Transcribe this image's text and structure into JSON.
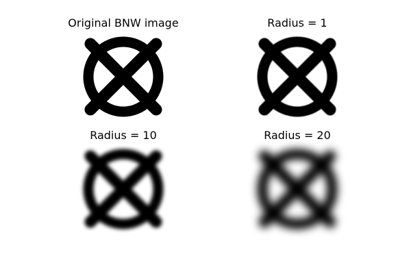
{
  "panels": [
    {
      "title": "Original BNW image",
      "blur_radius": 0
    },
    {
      "title": "Radius = 1",
      "blur_radius": 1
    },
    {
      "title": "Radius = 10",
      "blur_radius": 10
    },
    {
      "title": "Radius = 20",
      "blur_radius": 20
    }
  ],
  "colors": {
    "foreground": "#000000",
    "background": "#ffffff"
  },
  "icon": "circled-x-symbol"
}
